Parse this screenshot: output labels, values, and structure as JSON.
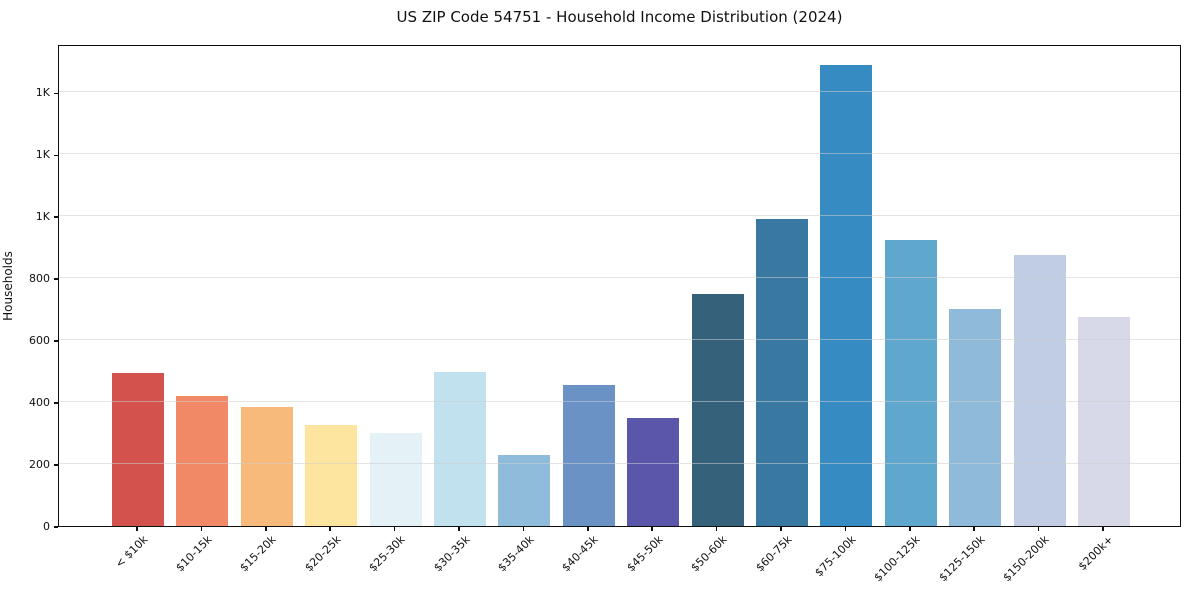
{
  "figure": {
    "background_color": "#ffffff",
    "spine_color": "#0f0f0f",
    "grid_color": "#e6e6e6"
  },
  "chart_data": {
    "type": "bar",
    "title": "US ZIP Code 54751 - Household Income Distribution (2024)",
    "xlabel": "",
    "ylabel": "Households",
    "categories": [
      "< $10k",
      "$10-15k",
      "$15-20k",
      "$20-25k",
      "$25-30k",
      "$30-35k",
      "$35-40k",
      "$40-45k",
      "$45-50k",
      "$50-60k",
      "$60-75k",
      "$75-100k",
      "$100-125k",
      "$125-150k",
      "$150-200k",
      "$200k+"
    ],
    "values": [
      495,
      420,
      385,
      325,
      300,
      498,
      230,
      455,
      350,
      750,
      990,
      1488,
      924,
      700,
      875,
      675
    ],
    "bar_colors": [
      "#d3524e",
      "#f18966",
      "#f8ba7b",
      "#fde5a0",
      "#e4f1f7",
      "#c2e1ee",
      "#8fbcdb",
      "#6a92c5",
      "#5a56aa",
      "#35617a",
      "#3979a1",
      "#368bc3",
      "#5fa7cd",
      "#90bada",
      "#c0cde4",
      "#d8d9e8"
    ],
    "ylim": [
      0,
      1556
    ],
    "ytick_values": [
      0,
      200,
      400,
      600,
      800,
      1000,
      1200,
      1400
    ],
    "yticklabels": [
      "0",
      "200",
      "400",
      "600",
      "800",
      "1K",
      "1K",
      "1K"
    ],
    "grid": "horizontal",
    "legend": "none"
  }
}
